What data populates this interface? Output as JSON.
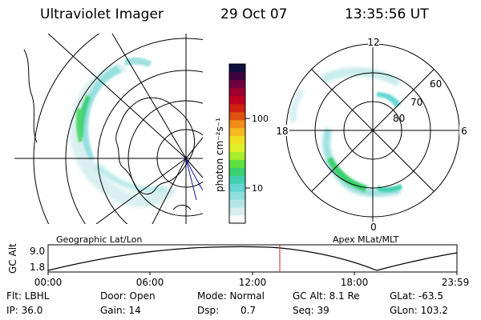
{
  "header": {
    "instrument": "Ultraviolet Imager",
    "date": "29 Oct 07",
    "time": "13:35:56 UT"
  },
  "colorbar": {
    "unit_label": "photon cm⁻²s⁻¹",
    "ticks": [
      "100",
      "10"
    ],
    "colors": [
      "#fafafa",
      "#d9eeee",
      "#b4e6e6",
      "#8fdede",
      "#66d6d6",
      "#40d0b0",
      "#3ad070",
      "#60e040",
      "#a8ec2c",
      "#e0f028",
      "#f0e020",
      "#f5b820",
      "#f08c18",
      "#e05010",
      "#d02010",
      "#c00020",
      "#a00030",
      "#700040",
      "#400040",
      "#101040"
    ]
  },
  "left_panel": {
    "caption": "Geographic Lat/Lon"
  },
  "right_panel": {
    "caption": "Apex MLat/MLT",
    "mlt_labels": {
      "top": "12",
      "left": "18",
      "right": "6",
      "bottom": "0"
    },
    "lat_labels": [
      "60",
      "70",
      "80"
    ]
  },
  "altitude_plot": {
    "ylabel": "GC Alt",
    "yticks": [
      "9.0",
      "1.8"
    ],
    "xticks": [
      "00:00",
      "06:00",
      "12:00",
      "18:00",
      "23:59"
    ],
    "current_time_marker_color": "#cc2020"
  },
  "info": {
    "filter": "Flt: LBHL",
    "ip": "IP: 36.0",
    "door": "Door: Open",
    "gain": "Gain: 14",
    "mode": "Mode: Normal",
    "dsp_label": "Dsp:",
    "dsp_value": "0.7",
    "gc_alt": "GC Alt: 8.1 Re",
    "seq": "Seq: 39",
    "glat": "GLat: -63.5",
    "glon": "GLon: 103.2"
  }
}
